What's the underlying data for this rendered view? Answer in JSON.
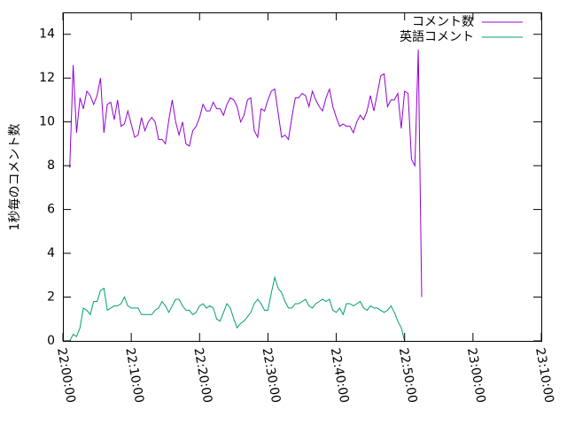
{
  "chart_data": {
    "type": "line",
    "ylabel": "1秒毎のコメント数",
    "xlabel": "",
    "ylim": [
      0,
      15
    ],
    "xlim": [
      "22:00:00",
      "23:10:00"
    ],
    "x_ticks": [
      "22:00:00",
      "22:10:00",
      "22:20:00",
      "22:30:00",
      "22:40:00",
      "22:50:00",
      "23:00:00",
      "23:10:00"
    ],
    "y_ticks": [
      "0",
      "2",
      "4",
      "6",
      "8",
      "10",
      "12",
      "14"
    ],
    "grid": false,
    "legend_position": "top-right",
    "series": [
      {
        "name": "コメント数",
        "color": "#9400d3",
        "points": [
          [
            "22:01:00",
            7.9
          ],
          [
            "22:01:30",
            12.6
          ],
          [
            "22:02:00",
            9.5
          ],
          [
            "22:02:30",
            11.1
          ],
          [
            "22:03:00",
            10.6
          ],
          [
            "22:03:30",
            11.4
          ],
          [
            "22:04:00",
            11.2
          ],
          [
            "22:04:30",
            10.8
          ],
          [
            "22:05:00",
            11.2
          ],
          [
            "22:05:30",
            12.0
          ],
          [
            "22:06:00",
            9.5
          ],
          [
            "22:06:30",
            10.8
          ],
          [
            "22:07:00",
            10.9
          ],
          [
            "22:07:30",
            10.1
          ],
          [
            "22:08:00",
            11.0
          ],
          [
            "22:08:30",
            9.8
          ],
          [
            "22:09:00",
            9.9
          ],
          [
            "22:09:30",
            10.5
          ],
          [
            "22:10:00",
            9.9
          ],
          [
            "22:10:30",
            9.3
          ],
          [
            "22:11:00",
            9.4
          ],
          [
            "22:11:30",
            10.2
          ],
          [
            "22:12:00",
            9.6
          ],
          [
            "22:12:30",
            10.0
          ],
          [
            "22:13:00",
            10.2
          ],
          [
            "22:13:30",
            10.0
          ],
          [
            "22:14:00",
            9.2
          ],
          [
            "22:14:30",
            9.2
          ],
          [
            "22:15:00",
            9.0
          ],
          [
            "22:15:30",
            10.1
          ],
          [
            "22:16:00",
            11.0
          ],
          [
            "22:16:30",
            10.0
          ],
          [
            "22:17:00",
            9.4
          ],
          [
            "22:17:30",
            10.0
          ],
          [
            "22:18:00",
            9.0
          ],
          [
            "22:18:30",
            8.9
          ],
          [
            "22:19:00",
            9.6
          ],
          [
            "22:19:30",
            9.8
          ],
          [
            "22:20:00",
            10.2
          ],
          [
            "22:20:30",
            10.8
          ],
          [
            "22:21:00",
            10.5
          ],
          [
            "22:21:30",
            10.5
          ],
          [
            "22:22:00",
            10.9
          ],
          [
            "22:22:30",
            10.6
          ],
          [
            "22:23:00",
            10.6
          ],
          [
            "22:23:30",
            10.3
          ],
          [
            "22:24:00",
            10.8
          ],
          [
            "22:24:30",
            11.1
          ],
          [
            "22:25:00",
            11.0
          ],
          [
            "22:25:30",
            10.7
          ],
          [
            "22:26:00",
            10.0
          ],
          [
            "22:26:30",
            10.3
          ],
          [
            "22:27:00",
            11.0
          ],
          [
            "22:27:30",
            11.1
          ],
          [
            "22:28:00",
            9.6
          ],
          [
            "22:28:30",
            9.3
          ],
          [
            "22:29:00",
            10.6
          ],
          [
            "22:29:30",
            10.5
          ],
          [
            "22:30:00",
            11.0
          ],
          [
            "22:30:30",
            11.4
          ],
          [
            "22:31:00",
            11.5
          ],
          [
            "22:31:30",
            10.4
          ],
          [
            "22:32:00",
            9.3
          ],
          [
            "22:32:30",
            9.4
          ],
          [
            "22:33:00",
            9.2
          ],
          [
            "22:33:30",
            10.2
          ],
          [
            "22:34:00",
            11.1
          ],
          [
            "22:34:30",
            11.1
          ],
          [
            "22:35:00",
            11.3
          ],
          [
            "22:35:30",
            11.2
          ],
          [
            "22:36:00",
            10.7
          ],
          [
            "22:36:30",
            11.4
          ],
          [
            "22:37:00",
            11.0
          ],
          [
            "22:37:30",
            10.7
          ],
          [
            "22:38:00",
            10.5
          ],
          [
            "22:38:30",
            11.1
          ],
          [
            "22:39:00",
            11.5
          ],
          [
            "22:39:30",
            10.7
          ],
          [
            "22:40:00",
            10.2
          ],
          [
            "22:40:30",
            9.8
          ],
          [
            "22:41:00",
            9.9
          ],
          [
            "22:41:30",
            9.8
          ],
          [
            "22:42:00",
            9.8
          ],
          [
            "22:42:30",
            9.5
          ],
          [
            "22:43:00",
            10.0
          ],
          [
            "22:43:30",
            10.3
          ],
          [
            "22:44:00",
            10.1
          ],
          [
            "22:44:30",
            10.5
          ],
          [
            "22:45:00",
            11.2
          ],
          [
            "22:45:30",
            10.5
          ],
          [
            "22:46:00",
            11.3
          ],
          [
            "22:46:30",
            12.1
          ],
          [
            "22:47:00",
            12.2
          ],
          [
            "22:47:30",
            10.7
          ],
          [
            "22:48:00",
            11.0
          ],
          [
            "22:48:30",
            11.0
          ],
          [
            "22:49:00",
            11.3
          ],
          [
            "22:49:30",
            9.7
          ],
          [
            "22:50:00",
            11.4
          ],
          [
            "22:50:30",
            11.3
          ],
          [
            "22:51:00",
            8.3
          ],
          [
            "22:51:30",
            8.0
          ],
          [
            "22:52:00",
            13.3
          ],
          [
            "22:52:30",
            2.0
          ]
        ]
      },
      {
        "name": "英語コメント",
        "color": "#009e73",
        "points": [
          [
            "22:01:00",
            0.0
          ],
          [
            "22:01:30",
            0.3
          ],
          [
            "22:02:00",
            0.2
          ],
          [
            "22:02:30",
            0.6
          ],
          [
            "22:03:00",
            1.5
          ],
          [
            "22:03:30",
            1.4
          ],
          [
            "22:04:00",
            1.2
          ],
          [
            "22:04:30",
            1.8
          ],
          [
            "22:05:00",
            1.8
          ],
          [
            "22:05:30",
            2.3
          ],
          [
            "22:06:00",
            2.4
          ],
          [
            "22:06:30",
            1.4
          ],
          [
            "22:07:00",
            1.5
          ],
          [
            "22:07:30",
            1.6
          ],
          [
            "22:08:00",
            1.6
          ],
          [
            "22:08:30",
            1.7
          ],
          [
            "22:09:00",
            2.0
          ],
          [
            "22:09:30",
            1.6
          ],
          [
            "22:10:00",
            1.5
          ],
          [
            "22:10:30",
            1.5
          ],
          [
            "22:11:00",
            1.5
          ],
          [
            "22:11:30",
            1.2
          ],
          [
            "22:12:00",
            1.2
          ],
          [
            "22:12:30",
            1.2
          ],
          [
            "22:13:00",
            1.2
          ],
          [
            "22:13:30",
            1.4
          ],
          [
            "22:14:00",
            1.5
          ],
          [
            "22:14:30",
            1.8
          ],
          [
            "22:15:00",
            1.6
          ],
          [
            "22:15:30",
            1.3
          ],
          [
            "22:16:00",
            1.6
          ],
          [
            "22:16:30",
            1.9
          ],
          [
            "22:17:00",
            1.9
          ],
          [
            "22:17:30",
            1.6
          ],
          [
            "22:18:00",
            1.4
          ],
          [
            "22:18:30",
            1.4
          ],
          [
            "22:19:00",
            1.2
          ],
          [
            "22:19:30",
            1.3
          ],
          [
            "22:20:00",
            1.6
          ],
          [
            "22:20:30",
            1.7
          ],
          [
            "22:21:00",
            1.5
          ],
          [
            "22:21:30",
            1.6
          ],
          [
            "22:22:00",
            1.5
          ],
          [
            "22:22:30",
            1.0
          ],
          [
            "22:23:00",
            0.9
          ],
          [
            "22:23:30",
            1.3
          ],
          [
            "22:24:00",
            1.7
          ],
          [
            "22:24:30",
            1.5
          ],
          [
            "22:25:00",
            1.0
          ],
          [
            "22:25:30",
            0.6
          ],
          [
            "22:26:00",
            0.8
          ],
          [
            "22:26:30",
            0.9
          ],
          [
            "22:27:00",
            1.1
          ],
          [
            "22:27:30",
            1.3
          ],
          [
            "22:28:00",
            1.7
          ],
          [
            "22:28:30",
            1.9
          ],
          [
            "22:29:00",
            1.7
          ],
          [
            "22:29:30",
            1.4
          ],
          [
            "22:30:00",
            1.4
          ],
          [
            "22:30:30",
            2.2
          ],
          [
            "22:31:00",
            2.9
          ],
          [
            "22:31:30",
            2.4
          ],
          [
            "22:32:00",
            2.2
          ],
          [
            "22:32:30",
            1.8
          ],
          [
            "22:33:00",
            1.5
          ],
          [
            "22:33:30",
            1.5
          ],
          [
            "22:34:00",
            1.7
          ],
          [
            "22:34:30",
            1.7
          ],
          [
            "22:35:00",
            1.8
          ],
          [
            "22:35:30",
            1.9
          ],
          [
            "22:36:00",
            1.6
          ],
          [
            "22:36:30",
            1.5
          ],
          [
            "22:37:00",
            1.7
          ],
          [
            "22:37:30",
            1.8
          ],
          [
            "22:38:00",
            1.9
          ],
          [
            "22:38:30",
            1.8
          ],
          [
            "22:39:00",
            1.9
          ],
          [
            "22:39:30",
            1.4
          ],
          [
            "22:40:00",
            1.3
          ],
          [
            "22:40:30",
            1.5
          ],
          [
            "22:41:00",
            1.2
          ],
          [
            "22:41:30",
            1.7
          ],
          [
            "22:42:00",
            1.7
          ],
          [
            "22:42:30",
            1.6
          ],
          [
            "22:43:00",
            1.7
          ],
          [
            "22:43:30",
            1.8
          ],
          [
            "22:44:00",
            1.5
          ],
          [
            "22:44:30",
            1.4
          ],
          [
            "22:45:00",
            1.6
          ],
          [
            "22:45:30",
            1.5
          ],
          [
            "22:46:00",
            1.5
          ],
          [
            "22:46:30",
            1.4
          ],
          [
            "22:47:00",
            1.3
          ],
          [
            "22:47:30",
            1.4
          ],
          [
            "22:48:00",
            1.6
          ],
          [
            "22:48:30",
            1.3
          ],
          [
            "22:49:00",
            0.9
          ],
          [
            "22:49:30",
            0.6
          ],
          [
            "22:50:00",
            0.0
          ]
        ]
      }
    ]
  }
}
